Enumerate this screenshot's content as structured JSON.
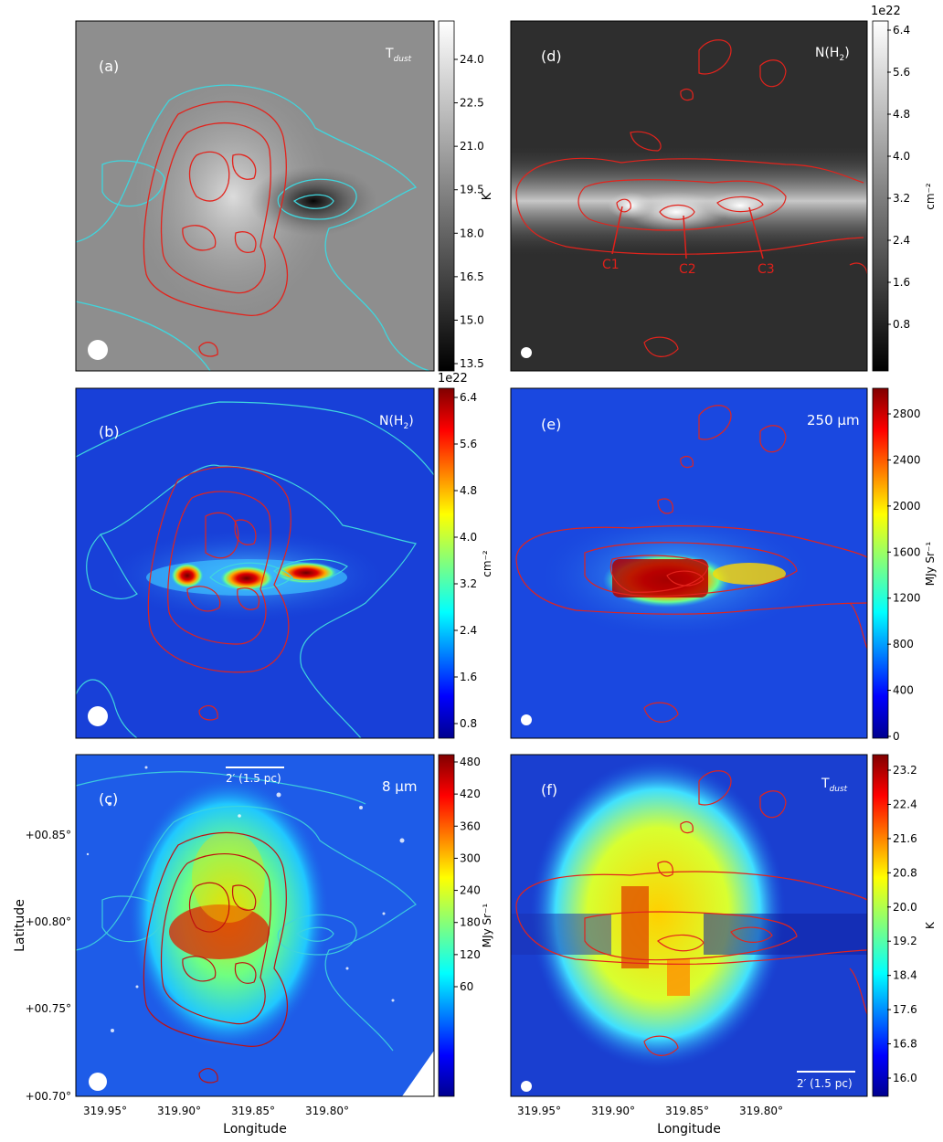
{
  "panels": [
    {
      "id": "a",
      "label": "(a)",
      "quantity": "T_dust",
      "quantity_main": "T",
      "quantity_sub": "dust",
      "colormap": "gray",
      "unit": "K",
      "cbar_ticks": [
        "24.0",
        "22.5",
        "21.0",
        "19.5",
        "18.0",
        "16.5",
        "15.0",
        "13.5"
      ],
      "cbar_range": [
        13.0,
        25.5
      ]
    },
    {
      "id": "d",
      "label": "(d)",
      "quantity": "N(H2)",
      "quantity_main": "N(H",
      "quantity_sub": "2",
      "quantity_tail": ")",
      "colormap": "gray",
      "unit": "cm⁻²",
      "cbar_exponent": "1e22",
      "cbar_ticks": [
        "6.4",
        "5.6",
        "4.8",
        "4.0",
        "3.2",
        "2.4",
        "1.6",
        "0.8"
      ],
      "clump_labels": [
        "C1",
        "C2",
        "C3"
      ]
    },
    {
      "id": "b",
      "label": "(b)",
      "quantity": "N(H2)",
      "quantity_main": "N(H",
      "quantity_sub": "2",
      "quantity_tail": ")",
      "colormap": "jet",
      "unit": "cm⁻²",
      "cbar_exponent": "1e22",
      "cbar_ticks": [
        "6.4",
        "5.6",
        "4.8",
        "4.0",
        "3.2",
        "2.4",
        "1.6",
        "0.8"
      ],
      "cbar_range": [
        0.5,
        6.7
      ]
    },
    {
      "id": "e",
      "label": "(e)",
      "quantity": "250 μm",
      "quantity_main": "250 μm",
      "colormap": "jet",
      "unit": "MJy Sr⁻¹",
      "cbar_ticks": [
        "2800",
        "2400",
        "2000",
        "1600",
        "1200",
        "800",
        "400",
        "0"
      ],
      "cbar_range": [
        0,
        3000
      ]
    },
    {
      "id": "c",
      "label": "(c)",
      "quantity": "8 μm",
      "quantity_main": "8 μm",
      "colormap": "jet",
      "unit": "MJy Sr⁻¹",
      "cbar_ticks": [
        "480",
        "420",
        "360",
        "300",
        "240",
        "180",
        "120",
        "60"
      ],
      "scalebar": "2′ (1.5 pc)"
    },
    {
      "id": "f",
      "label": "(f)",
      "quantity": "T_dust",
      "quantity_main": "T",
      "quantity_sub": "dust",
      "colormap": "jet",
      "unit": "K",
      "cbar_ticks": [
        "23.2",
        "22.4",
        "21.6",
        "20.8",
        "20.0",
        "19.2",
        "18.4",
        "17.6",
        "16.8",
        "16.0"
      ],
      "cbar_range": [
        16.0,
        23.5
      ],
      "scalebar": "2′ (1.5 pc)"
    }
  ],
  "axes": {
    "xlabel": "Longitude",
    "ylabel": "Latitude",
    "x_ticks": [
      "319.95°",
      "319.90°",
      "319.85°",
      "319.80°"
    ],
    "y_ticks": [
      "+00.85°",
      "+00.80°",
      "+00.75°",
      "+00.70°"
    ]
  },
  "colors": {
    "red_contour": "#e3231c",
    "cyan_contour": "#3fd6de",
    "jet_background": "#1840d8",
    "label_text_white": "#ffffff",
    "clump_label_red": "#e0201a"
  }
}
